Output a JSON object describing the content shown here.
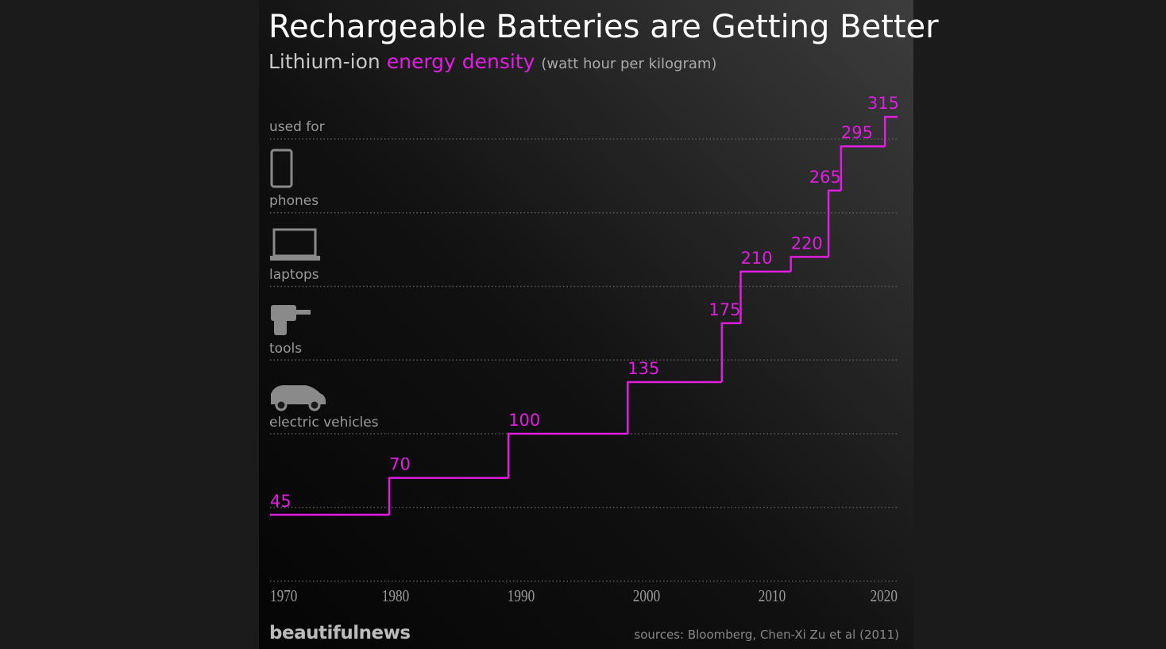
{
  "chart_data": {
    "type": "step",
    "title": "Rechargeable Batteries are Getting Better",
    "subtitle": {
      "lead": "Lithium-ion",
      "highlight": "energy density",
      "unit": "(watt hour per kilogram)"
    },
    "x": [
      1970,
      1979.5,
      1989,
      1998.5,
      2006,
      2007.5,
      2011.5,
      2014.5,
      2015.5,
      2019
    ],
    "series": [
      {
        "name": "energy density",
        "color": "#e01de0",
        "values": [
          45,
          70,
          100,
          135,
          175,
          210,
          220,
          265,
          295,
          315
        ]
      }
    ],
    "xlim": [
      1970,
      2020
    ],
    "xticks": [
      1970,
      1980,
      1990,
      2000,
      2010,
      2020
    ],
    "ylim": [
      0,
      330
    ],
    "yticks": [
      0,
      50,
      100,
      150,
      200,
      250,
      300
    ],
    "grid": true,
    "annotations": {
      "used_for": "used for",
      "uses": [
        "phones",
        "laptops",
        "tools",
        "electric vehicles"
      ]
    },
    "brand": "beautifulnews",
    "source": "sources: Bloomberg, Chen-Xi Zu et al (2011)"
  }
}
